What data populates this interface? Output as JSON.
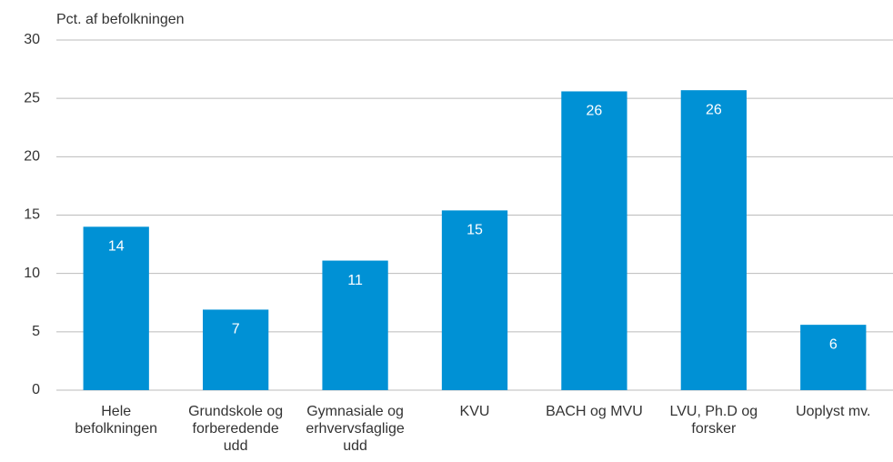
{
  "chart_data": {
    "type": "bar",
    "y_axis_label": "Pct. af befolkningen",
    "categories": [
      "Hele befolkningen",
      "Grundskole og forberedende udd",
      "Gymnasiale og erhvervsfaglige udd",
      "KVU",
      "BACH og MVU",
      "LVU, Ph.D og forsker",
      "Uoplyst mv."
    ],
    "values": [
      14.0,
      6.9,
      11.1,
      15.4,
      25.6,
      25.7,
      5.6
    ],
    "value_labels": [
      "14",
      "7",
      "11",
      "15",
      "26",
      "26",
      "6"
    ],
    "color": "#0091d5",
    "ylim": [
      0,
      30
    ],
    "yticks": [
      0,
      5,
      10,
      15,
      20,
      25,
      30
    ],
    "grid": true
  }
}
